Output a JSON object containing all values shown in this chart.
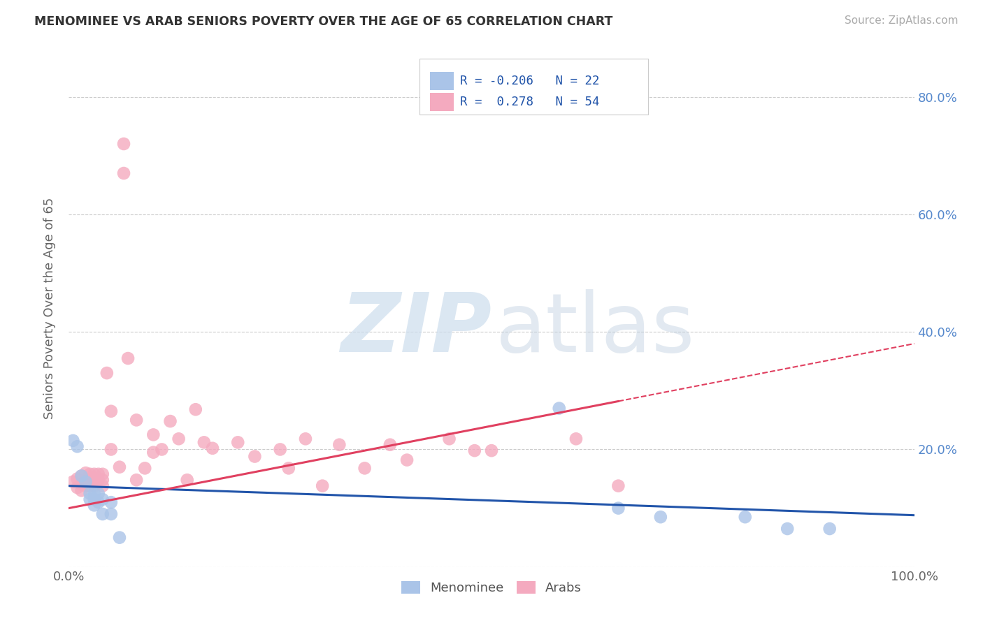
{
  "title": "MENOMINEE VS ARAB SENIORS POVERTY OVER THE AGE OF 65 CORRELATION CHART",
  "source_text": "Source: ZipAtlas.com",
  "ylabel": "Seniors Poverty Over the Age of 65",
  "xlim": [
    0,
    1.0
  ],
  "ylim": [
    0,
    0.88
  ],
  "menominee_color": "#aac4e8",
  "arab_color": "#f4aabf",
  "menominee_line_color": "#2255aa",
  "arab_line_color": "#e04060",
  "menominee_points": [
    [
      0.005,
      0.215
    ],
    [
      0.01,
      0.205
    ],
    [
      0.015,
      0.155
    ],
    [
      0.02,
      0.145
    ],
    [
      0.025,
      0.125
    ],
    [
      0.025,
      0.115
    ],
    [
      0.03,
      0.125
    ],
    [
      0.03,
      0.115
    ],
    [
      0.03,
      0.105
    ],
    [
      0.035,
      0.125
    ],
    [
      0.035,
      0.11
    ],
    [
      0.04,
      0.115
    ],
    [
      0.04,
      0.09
    ],
    [
      0.05,
      0.11
    ],
    [
      0.05,
      0.09
    ],
    [
      0.06,
      0.05
    ],
    [
      0.58,
      0.27
    ],
    [
      0.65,
      0.1
    ],
    [
      0.7,
      0.085
    ],
    [
      0.8,
      0.085
    ],
    [
      0.85,
      0.065
    ],
    [
      0.9,
      0.065
    ]
  ],
  "arab_points": [
    [
      0.005,
      0.145
    ],
    [
      0.01,
      0.15
    ],
    [
      0.01,
      0.135
    ],
    [
      0.015,
      0.155
    ],
    [
      0.015,
      0.14
    ],
    [
      0.015,
      0.13
    ],
    [
      0.02,
      0.16
    ],
    [
      0.02,
      0.148
    ],
    [
      0.02,
      0.138
    ],
    [
      0.025,
      0.158
    ],
    [
      0.025,
      0.148
    ],
    [
      0.025,
      0.138
    ],
    [
      0.03,
      0.158
    ],
    [
      0.03,
      0.148
    ],
    [
      0.03,
      0.138
    ],
    [
      0.035,
      0.158
    ],
    [
      0.035,
      0.148
    ],
    [
      0.04,
      0.158
    ],
    [
      0.04,
      0.148
    ],
    [
      0.04,
      0.138
    ],
    [
      0.045,
      0.33
    ],
    [
      0.05,
      0.265
    ],
    [
      0.05,
      0.2
    ],
    [
      0.06,
      0.17
    ],
    [
      0.065,
      0.72
    ],
    [
      0.065,
      0.67
    ],
    [
      0.07,
      0.355
    ],
    [
      0.08,
      0.25
    ],
    [
      0.08,
      0.148
    ],
    [
      0.09,
      0.168
    ],
    [
      0.1,
      0.225
    ],
    [
      0.1,
      0.195
    ],
    [
      0.11,
      0.2
    ],
    [
      0.12,
      0.248
    ],
    [
      0.13,
      0.218
    ],
    [
      0.14,
      0.148
    ],
    [
      0.15,
      0.268
    ],
    [
      0.16,
      0.212
    ],
    [
      0.17,
      0.202
    ],
    [
      0.2,
      0.212
    ],
    [
      0.22,
      0.188
    ],
    [
      0.25,
      0.2
    ],
    [
      0.26,
      0.168
    ],
    [
      0.28,
      0.218
    ],
    [
      0.3,
      0.138
    ],
    [
      0.32,
      0.208
    ],
    [
      0.35,
      0.168
    ],
    [
      0.38,
      0.208
    ],
    [
      0.4,
      0.182
    ],
    [
      0.45,
      0.218
    ],
    [
      0.48,
      0.198
    ],
    [
      0.5,
      0.198
    ],
    [
      0.6,
      0.218
    ],
    [
      0.65,
      0.138
    ]
  ],
  "menominee_line": {
    "x0": 0.0,
    "y0": 0.138,
    "x1": 1.0,
    "y1": 0.088
  },
  "arab_solid_line": {
    "x0": 0.0,
    "y0": 0.1,
    "x1": 0.65,
    "y1": 0.282
  },
  "arab_dashed_line": {
    "x0": 0.65,
    "y0": 0.282,
    "x1": 1.0,
    "y1": 0.38
  },
  "yticks": [
    0.0,
    0.2,
    0.4,
    0.6,
    0.8
  ],
  "yticklabels_right": [
    "",
    "20.0%",
    "40.0%",
    "60.0%",
    "80.0%"
  ],
  "xticks": [
    0.0,
    0.25,
    0.5,
    0.75,
    1.0
  ],
  "xticklabels": [
    "0.0%",
    "",
    "",
    "",
    "100.0%"
  ],
  "legend_R_men": "R = -0.206",
  "legend_N_men": "N = 22",
  "legend_R_arab": "R =  0.278",
  "legend_N_arab": "N = 54"
}
